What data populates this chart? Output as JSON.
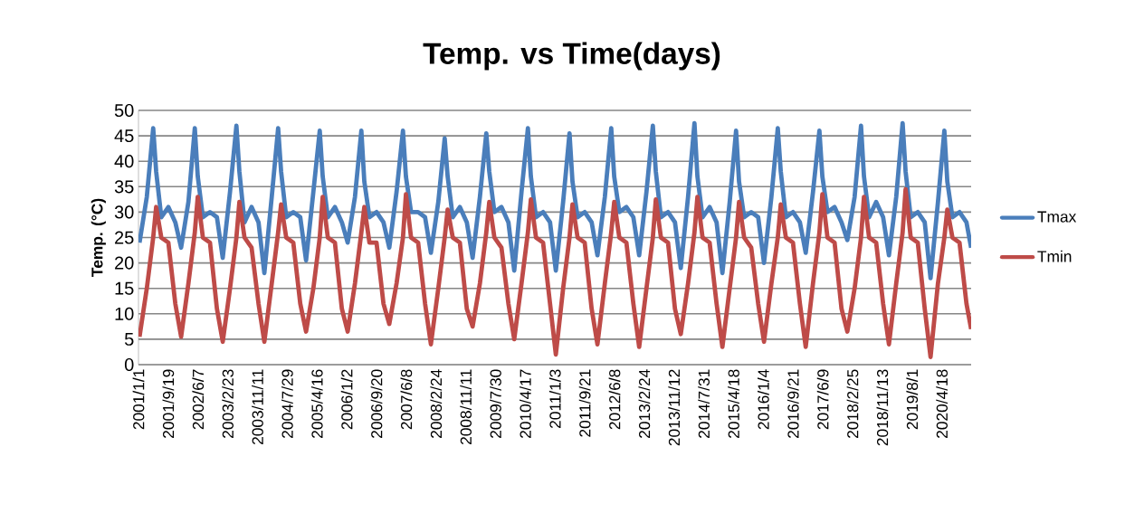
{
  "chart_data": {
    "type": "line",
    "title": "Temp. vs Time(days)",
    "ylabel": "Temp. (°C)",
    "x": [
      "2001-01-10",
      "2001-03-15",
      "2001-05-10",
      "2001-06-05",
      "2001-07-20",
      "2001-09-20",
      "2001-11-20",
      "2002-01-10",
      "2002-03-15",
      "2002-05-10",
      "2002-06-05",
      "2002-07-20",
      "2002-09-20",
      "2002-11-20",
      "2003-01-10",
      "2003-03-15",
      "2003-05-10",
      "2003-06-05",
      "2003-07-20",
      "2003-09-20",
      "2003-11-20",
      "2004-01-10",
      "2004-03-15",
      "2004-05-10",
      "2004-06-05",
      "2004-07-20",
      "2004-09-20",
      "2004-11-20",
      "2005-01-10",
      "2005-03-15",
      "2005-05-10",
      "2005-06-05",
      "2005-07-20",
      "2005-09-20",
      "2005-11-20",
      "2006-01-10",
      "2006-03-15",
      "2006-05-10",
      "2006-06-05",
      "2006-07-20",
      "2006-09-20",
      "2006-11-20",
      "2007-01-10",
      "2007-03-15",
      "2007-05-10",
      "2007-06-05",
      "2007-07-20",
      "2007-09-20",
      "2007-11-20",
      "2008-01-10",
      "2008-03-15",
      "2008-05-10",
      "2008-06-05",
      "2008-07-20",
      "2008-09-20",
      "2008-11-20",
      "2009-01-10",
      "2009-03-15",
      "2009-05-10",
      "2009-06-05",
      "2009-07-20",
      "2009-09-20",
      "2009-11-20",
      "2010-01-10",
      "2010-03-15",
      "2010-05-10",
      "2010-06-05",
      "2010-07-20",
      "2010-09-20",
      "2010-11-20",
      "2011-01-10",
      "2011-03-15",
      "2011-05-10",
      "2011-06-05",
      "2011-07-20",
      "2011-09-20",
      "2011-11-20",
      "2012-01-10",
      "2012-03-15",
      "2012-05-10",
      "2012-06-05",
      "2012-07-20",
      "2012-09-20",
      "2012-11-20",
      "2013-01-10",
      "2013-03-15",
      "2013-05-10",
      "2013-06-05",
      "2013-07-20",
      "2013-09-20",
      "2013-11-20",
      "2014-01-10",
      "2014-03-15",
      "2014-05-10",
      "2014-06-05",
      "2014-07-20",
      "2014-09-20",
      "2014-11-20",
      "2015-01-10",
      "2015-03-15",
      "2015-05-10",
      "2015-06-05",
      "2015-07-20",
      "2015-09-20",
      "2015-11-20",
      "2016-01-10",
      "2016-03-15",
      "2016-05-10",
      "2016-06-05",
      "2016-07-20",
      "2016-09-20",
      "2016-11-20",
      "2017-01-10",
      "2017-03-15",
      "2017-05-10",
      "2017-06-05",
      "2017-07-20",
      "2017-09-20",
      "2017-11-20",
      "2018-01-10",
      "2018-03-15",
      "2018-05-10",
      "2018-06-05",
      "2018-07-20",
      "2018-09-20",
      "2018-11-20",
      "2019-01-10",
      "2019-03-15",
      "2019-05-10",
      "2019-06-05",
      "2019-07-20",
      "2019-09-20",
      "2019-11-20",
      "2020-01-10",
      "2020-03-15",
      "2020-05-10",
      "2020-06-05",
      "2020-07-20",
      "2020-09-20",
      "2020-11-20",
      "2020-12-31"
    ],
    "series": [
      {
        "name": "Tmax",
        "color": "#4a7ebb",
        "values": [
          24,
          33,
          46.5,
          38,
          29,
          31,
          28,
          23,
          32,
          46.5,
          37,
          29,
          30,
          29,
          21,
          34,
          47,
          38,
          28,
          31,
          28,
          18,
          33,
          46.5,
          38,
          29,
          30,
          29,
          20.5,
          34,
          46,
          37,
          29,
          31,
          28,
          24,
          33,
          46,
          36,
          29,
          30,
          28,
          23,
          34,
          46,
          37,
          30,
          30,
          29,
          22,
          32,
          44.5,
          37,
          29,
          31,
          28,
          21,
          33,
          45.5,
          38,
          30,
          31,
          28,
          18.5,
          34,
          46.5,
          37,
          29,
          30,
          28,
          18.5,
          32,
          45.5,
          36,
          29,
          30,
          28,
          21.5,
          33,
          46.5,
          37,
          30,
          31,
          29,
          21.5,
          34,
          47,
          38,
          29,
          30,
          28,
          19,
          33,
          47.5,
          37,
          29,
          31,
          28,
          18,
          32,
          46,
          36,
          29,
          30,
          29,
          20,
          33,
          46.5,
          38,
          29,
          30,
          28,
          22,
          34,
          46,
          37,
          30,
          31,
          28,
          24.5,
          33,
          47,
          37,
          29,
          32,
          29,
          21.5,
          33,
          47.5,
          38,
          29,
          30,
          28,
          17,
          32,
          46,
          36,
          29,
          30,
          28,
          23
        ]
      },
      {
        "name": "Tmin",
        "color": "#be4b48",
        "values": [
          5.5,
          15,
          25,
          31,
          25,
          24,
          12,
          5.5,
          16,
          26,
          33,
          25,
          24,
          11,
          4.5,
          15,
          25,
          32,
          25,
          23,
          12,
          4.5,
          16,
          26,
          31.5,
          25,
          24,
          12,
          6.5,
          15,
          25,
          33,
          25,
          24,
          11,
          6.5,
          16,
          26,
          31,
          24,
          24,
          12,
          8,
          16,
          25,
          33.5,
          25,
          24,
          12,
          4,
          15,
          25,
          30.5,
          25,
          24,
          11,
          7.5,
          16,
          26,
          32,
          25,
          23,
          12,
          5,
          16,
          26,
          32.5,
          25,
          24,
          12,
          2,
          15,
          25,
          31.5,
          25,
          24,
          11,
          4,
          16,
          26,
          32,
          25,
          24,
          12,
          3.5,
          15,
          25,
          32.5,
          25,
          24,
          11,
          6,
          16,
          26,
          33,
          25,
          24,
          12,
          3.5,
          15,
          25,
          32,
          25,
          23,
          12,
          4.5,
          16,
          25,
          31.5,
          25,
          24,
          12,
          3.5,
          16,
          26,
          33.5,
          25,
          24,
          11,
          6.5,
          15,
          25,
          33,
          25,
          24,
          12,
          4,
          16,
          26,
          34.5,
          25,
          24,
          11,
          1.5,
          16,
          25,
          30.5,
          25,
          24,
          12,
          7
        ]
      }
    ],
    "xlim": [
      "2001-01-01",
      "2020-12-31"
    ],
    "xticks": [
      {
        "value": "2001-01-01",
        "label": "2001/1/1"
      },
      {
        "value": "2001-09-19",
        "label": "2001/9/19"
      },
      {
        "value": "2002-06-07",
        "label": "2002/6/7"
      },
      {
        "value": "2003-02-23",
        "label": "2003/2/23"
      },
      {
        "value": "2003-11-11",
        "label": "2003/11/11"
      },
      {
        "value": "2004-07-29",
        "label": "2004/7/29"
      },
      {
        "value": "2005-04-16",
        "label": "2005/4/16"
      },
      {
        "value": "2006-01-02",
        "label": "2006/1/2"
      },
      {
        "value": "2006-09-20",
        "label": "2006/9/20"
      },
      {
        "value": "2007-06-08",
        "label": "2007/6/8"
      },
      {
        "value": "2008-02-24",
        "label": "2008/2/24"
      },
      {
        "value": "2008-11-11",
        "label": "2008/11/11"
      },
      {
        "value": "2009-07-30",
        "label": "2009/7/30"
      },
      {
        "value": "2010-04-17",
        "label": "2010/4/17"
      },
      {
        "value": "2011-01-03",
        "label": "2011/1/3"
      },
      {
        "value": "2011-09-21",
        "label": "2011/9/21"
      },
      {
        "value": "2012-06-08",
        "label": "2012/6/8"
      },
      {
        "value": "2013-02-24",
        "label": "2013/2/24"
      },
      {
        "value": "2013-11-12",
        "label": "2013/11/12"
      },
      {
        "value": "2014-07-31",
        "label": "2014/7/31"
      },
      {
        "value": "2015-04-18",
        "label": "2015/4/18"
      },
      {
        "value": "2016-01-04",
        "label": "2016/1/4"
      },
      {
        "value": "2016-09-21",
        "label": "2016/9/21"
      },
      {
        "value": "2017-06-09",
        "label": "2017/6/9"
      },
      {
        "value": "2018-02-25",
        "label": "2018/2/25"
      },
      {
        "value": "2018-11-13",
        "label": "2018/11/13"
      },
      {
        "value": "2019-08-01",
        "label": "2019/8/1"
      },
      {
        "value": "2020-04-18",
        "label": "2020/4/18"
      }
    ],
    "ylim": [
      0,
      50
    ],
    "yticks": [
      0,
      5,
      10,
      15,
      20,
      25,
      30,
      35,
      40,
      45,
      50
    ],
    "grid": "y",
    "legend": "right"
  }
}
